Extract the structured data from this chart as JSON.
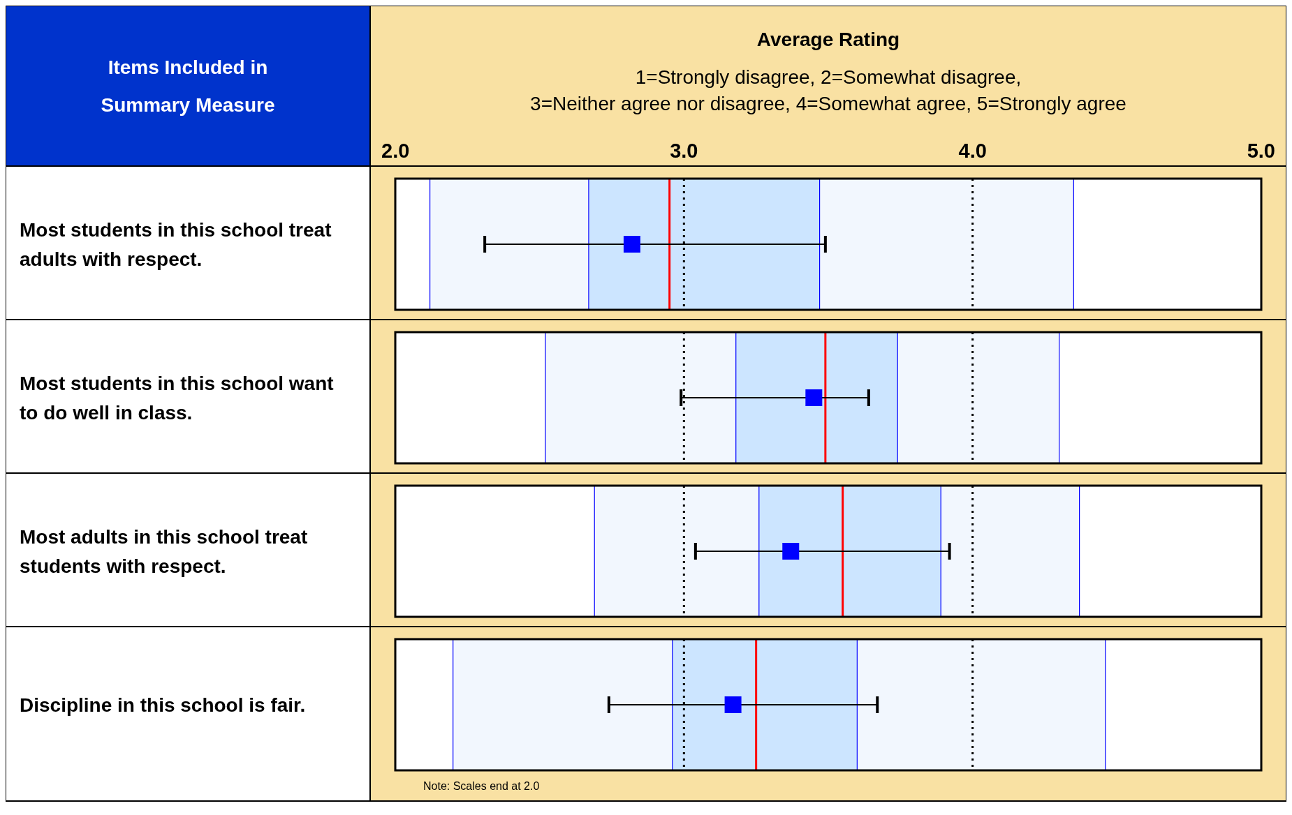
{
  "chart_data": [
    {
      "type": "scatter",
      "orientation": "horizontal",
      "title": "Average Rating",
      "subtitle": "1=Strongly disagree, 2=Somewhat disagree,\n3=Neither agree nor disagree, 4=Somewhat agree, 5=Strongly agree",
      "ylabel": "Items Included in Summary Measure",
      "categories": [
        "Most students in this school treat adults with respect."
      ],
      "values": [
        2.82
      ],
      "errors": [
        [
          2.31,
          3.49
        ]
      ],
      "color": "#0000ff",
      "marker": "square",
      "xlim": [
        2,
        5
      ],
      "xticks": [
        {
          "value": 2,
          "label": "2.0"
        },
        {
          "value": 3,
          "label": "3.0"
        },
        {
          "value": 4,
          "label": "4.0"
        },
        {
          "value": 5,
          "label": "5.0"
        }
      ],
      "grid": "x",
      "bands": [
        {
          "axis": "x",
          "from": 2.12,
          "to": 4.35,
          "color": "#f2f7fe"
        },
        {
          "axis": "x",
          "from": 2.67,
          "to": 3.47,
          "color": "#cce5ff"
        }
      ],
      "ref_lines": [
        {
          "axis": "x",
          "value": 2.95,
          "color": "#ff0000"
        }
      ]
    },
    {
      "type": "scatter",
      "orientation": "horizontal",
      "categories": [
        "Most students in this school want to do well in class."
      ],
      "values": [
        3.45
      ],
      "errors": [
        [
          2.99,
          3.64
        ]
      ],
      "color": "#0000ff",
      "marker": "square",
      "xlim": [
        2,
        5
      ],
      "xticks": [
        2,
        3,
        4,
        5
      ],
      "grid": "x",
      "tick_labels": "y",
      "bands": [
        {
          "axis": "x",
          "from": 2.52,
          "to": 4.3,
          "color": "#f2f7fe"
        },
        {
          "axis": "x",
          "from": 3.18,
          "to": 3.74,
          "color": "#cce5ff"
        }
      ],
      "ref_lines": [
        {
          "axis": "x",
          "value": 3.49,
          "color": "#ff0000"
        }
      ]
    },
    {
      "type": "scatter",
      "orientation": "horizontal",
      "categories": [
        "Most adults in this school treat students with respect."
      ],
      "values": [
        3.37
      ],
      "errors": [
        [
          3.04,
          3.92
        ]
      ],
      "color": "#0000ff",
      "marker": "square",
      "xlim": [
        2,
        5
      ],
      "xticks": [
        2,
        3,
        4,
        5
      ],
      "grid": "x",
      "tick_labels": "y",
      "bands": [
        {
          "axis": "x",
          "from": 2.69,
          "to": 4.37,
          "color": "#f2f7fe"
        },
        {
          "axis": "x",
          "from": 3.26,
          "to": 3.89,
          "color": "#cce5ff"
        }
      ],
      "ref_lines": [
        {
          "axis": "x",
          "value": 3.55,
          "color": "#ff0000"
        }
      ]
    },
    {
      "type": "scatter",
      "orientation": "horizontal",
      "categories": [
        "Discipline in this school is fair."
      ],
      "values": [
        3.17
      ],
      "errors": [
        [
          2.74,
          3.67
        ]
      ],
      "color": "#0000ff",
      "marker": "square",
      "xlim": [
        2,
        5
      ],
      "xticks": [
        2,
        3,
        4,
        5
      ],
      "grid": "x",
      "tick_labels": "y",
      "bands": [
        {
          "axis": "x",
          "from": 2.2,
          "to": 4.46,
          "color": "#f2f7fe"
        },
        {
          "axis": "x",
          "from": 2.96,
          "to": 3.6,
          "color": "#cce5ff"
        }
      ],
      "ref_lines": [
        {
          "axis": "x",
          "value": 3.25,
          "color": "#ff0000"
        }
      ],
      "annotations": [
        "Note: Scales end at 2.0"
      ]
    }
  ]
}
